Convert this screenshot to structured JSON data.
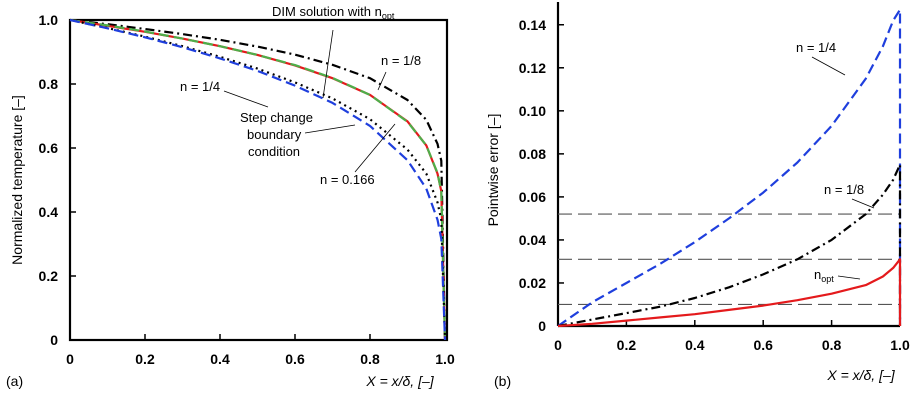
{
  "chart_data": [
    {
      "type": "line",
      "panel_label": "(a)",
      "xlabel": "X = x/δ, [–]",
      "ylabel": "Normalized temperature [–]",
      "xlim": [
        0,
        1.0
      ],
      "ylim": [
        0,
        1.0
      ],
      "xticks": [
        "0",
        "0.2",
        "0.4",
        "0.6",
        "0.8",
        "1.0"
      ],
      "yticks": [
        "0",
        "0.2",
        "0.4",
        "0.6",
        "0.8",
        "1.0"
      ],
      "grid": false,
      "series": [
        {
          "name": "n = 1/8",
          "color": "#000000",
          "dash": "dashdot",
          "x": [
            0,
            0.1,
            0.2,
            0.3,
            0.4,
            0.5,
            0.6,
            0.7,
            0.8,
            0.9,
            0.95,
            0.98,
            0.99,
            1.0
          ],
          "y": [
            1.0,
            0.987,
            0.972,
            0.956,
            0.938,
            0.917,
            0.892,
            0.86,
            0.818,
            0.75,
            0.688,
            0.613,
            0.56,
            0.0
          ]
        },
        {
          "name": "DIM solution with n_opt",
          "color": "#e41a1c",
          "dash": "solid",
          "x": [
            0,
            0.1,
            0.2,
            0.3,
            0.4,
            0.5,
            0.6,
            0.7,
            0.8,
            0.9,
            0.95,
            0.98,
            0.99,
            1.0
          ],
          "y": [
            1.0,
            0.982,
            0.963,
            0.942,
            0.918,
            0.891,
            0.858,
            0.818,
            0.766,
            0.683,
            0.608,
            0.52,
            0.465,
            0.0
          ]
        },
        {
          "name": "n = 0.166",
          "color": "#4daf4a",
          "dash": "dashed",
          "x": [
            0,
            0.1,
            0.2,
            0.3,
            0.4,
            0.5,
            0.6,
            0.7,
            0.8,
            0.9,
            0.95,
            0.98,
            0.99,
            1.0
          ],
          "y": [
            1.0,
            0.983,
            0.964,
            0.942,
            0.918,
            0.891,
            0.859,
            0.819,
            0.766,
            0.682,
            0.608,
            0.522,
            0.465,
            0.0
          ]
        },
        {
          "name": "Step change boundary condition",
          "color": "#000000",
          "dash": "dotted",
          "x": [
            0,
            0.1,
            0.2,
            0.3,
            0.4,
            0.5,
            0.6,
            0.7,
            0.8,
            0.9,
            0.95,
            0.98,
            0.99,
            1.0
          ],
          "y": [
            1.0,
            0.975,
            0.948,
            0.918,
            0.885,
            0.848,
            0.805,
            0.755,
            0.69,
            0.595,
            0.52,
            0.43,
            0.375,
            0.0
          ]
        },
        {
          "name": "n = 1/4",
          "color": "#1f3fdd",
          "dash": "dashed",
          "x": [
            0,
            0.1,
            0.2,
            0.3,
            0.4,
            0.5,
            0.6,
            0.7,
            0.8,
            0.9,
            0.95,
            0.98,
            0.99,
            1.0
          ],
          "y": [
            1.0,
            0.974,
            0.946,
            0.915,
            0.88,
            0.841,
            0.795,
            0.741,
            0.669,
            0.562,
            0.473,
            0.376,
            0.316,
            0.0
          ]
        }
      ],
      "annotations": [
        {
          "key": "dim",
          "text": "DIM solution with n",
          "sub": "opt"
        },
        {
          "key": "n18",
          "text": "n = 1/8"
        },
        {
          "key": "n14",
          "text": "n = 1/4"
        },
        {
          "key": "step1",
          "text": "Step change"
        },
        {
          "key": "step2",
          "text": "boundary"
        },
        {
          "key": "step3",
          "text": "condition"
        },
        {
          "key": "n0166",
          "text": "n = 0.166"
        }
      ]
    },
    {
      "type": "line",
      "panel_label": "(b)",
      "xlabel": "X = x/δ, [–]",
      "ylabel": "Pointwise error [–]",
      "xlim": [
        0,
        1.0
      ],
      "ylim": [
        0,
        0.145
      ],
      "xticks": [
        "0",
        "0.2",
        "0.4",
        "0.6",
        "0.8",
        "1.0"
      ],
      "yticks": [
        "0",
        "0.02",
        "0.04",
        "0.06",
        "0.08",
        "0.10",
        "0.12",
        "0.14"
      ],
      "grid": false,
      "reference_lines": [
        0.01,
        0.031,
        0.052
      ],
      "series": [
        {
          "name": "n = 1/4",
          "color": "#1f3fdd",
          "dash": "dashed",
          "x": [
            0,
            0.1,
            0.2,
            0.3,
            0.4,
            0.5,
            0.6,
            0.7,
            0.8,
            0.9,
            0.95,
            0.98,
            1.0,
            1.0
          ],
          "y": [
            0,
            0.011,
            0.02,
            0.029,
            0.039,
            0.05,
            0.062,
            0.076,
            0.093,
            0.115,
            0.13,
            0.142,
            0.147,
            0.0
          ]
        },
        {
          "name": "n = 1/8",
          "color": "#000000",
          "dash": "dashdot",
          "x": [
            0,
            0.1,
            0.2,
            0.3,
            0.4,
            0.5,
            0.6,
            0.7,
            0.8,
            0.9,
            0.95,
            0.98,
            1.0,
            1.0
          ],
          "y": [
            0,
            0.003,
            0.006,
            0.009,
            0.013,
            0.018,
            0.024,
            0.031,
            0.04,
            0.052,
            0.061,
            0.068,
            0.075,
            0.0
          ]
        },
        {
          "name": "n_opt",
          "color": "#e41a1c",
          "dash": "solid",
          "x": [
            0,
            0.1,
            0.2,
            0.3,
            0.4,
            0.5,
            0.6,
            0.7,
            0.8,
            0.9,
            0.95,
            0.98,
            1.0,
            1.0
          ],
          "y": [
            0,
            0.001,
            0.0025,
            0.004,
            0.0055,
            0.0075,
            0.0095,
            0.012,
            0.015,
            0.019,
            0.023,
            0.027,
            0.031,
            0.0
          ]
        }
      ],
      "annotations": [
        {
          "key": "n14",
          "text": "n = 1/4"
        },
        {
          "key": "n18",
          "text": "n = 1/8"
        },
        {
          "key": "nopt",
          "text": "n",
          "sub": "opt"
        }
      ]
    }
  ]
}
